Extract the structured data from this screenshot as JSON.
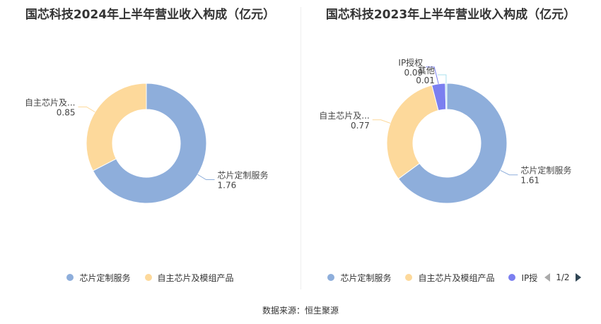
{
  "chart_data": [
    {
      "type": "pie",
      "variant": "donut",
      "title": "国芯科技2024年上半年营业收入构成（亿元）",
      "slices": [
        {
          "label": "芯片定制服务",
          "value": 1.76,
          "value_text": "1.76",
          "color": "#8eaedb"
        },
        {
          "label": "自主芯片及...",
          "value": 0.85,
          "value_text": "0.85",
          "color": "#fdd99b"
        }
      ],
      "legend": {
        "placement": "bottom",
        "items": [
          {
            "label": "芯片定制服务",
            "color": "#8eaedb"
          },
          {
            "label": "自主芯片及模组产品",
            "color": "#fdd99b"
          }
        ]
      }
    },
    {
      "type": "pie",
      "variant": "donut",
      "title": "国芯科技2023年上半年营业收入构成（亿元）",
      "slices": [
        {
          "label": "芯片定制服务",
          "value": 1.61,
          "value_text": "1.61",
          "color": "#8eaedb"
        },
        {
          "label": "自主芯片及...",
          "value": 0.77,
          "value_text": "0.77",
          "color": "#fdd99b"
        },
        {
          "label": "IP授权",
          "value": 0.09,
          "value_text": "0.09",
          "color": "#7b7ff0"
        },
        {
          "label": "其他",
          "value": 0.01,
          "value_text": "0.01",
          "color": "#a9e0ee"
        }
      ],
      "legend": {
        "placement": "bottom",
        "items": [
          {
            "label": "芯片定制服务",
            "color": "#8eaedb"
          },
          {
            "label": "自主芯片及模组产品",
            "color": "#fdd99b"
          },
          {
            "label": "IP授",
            "color": "#7b7ff0"
          }
        ],
        "pager": "1/2"
      }
    }
  ],
  "source": "数据来源：恒生聚源"
}
